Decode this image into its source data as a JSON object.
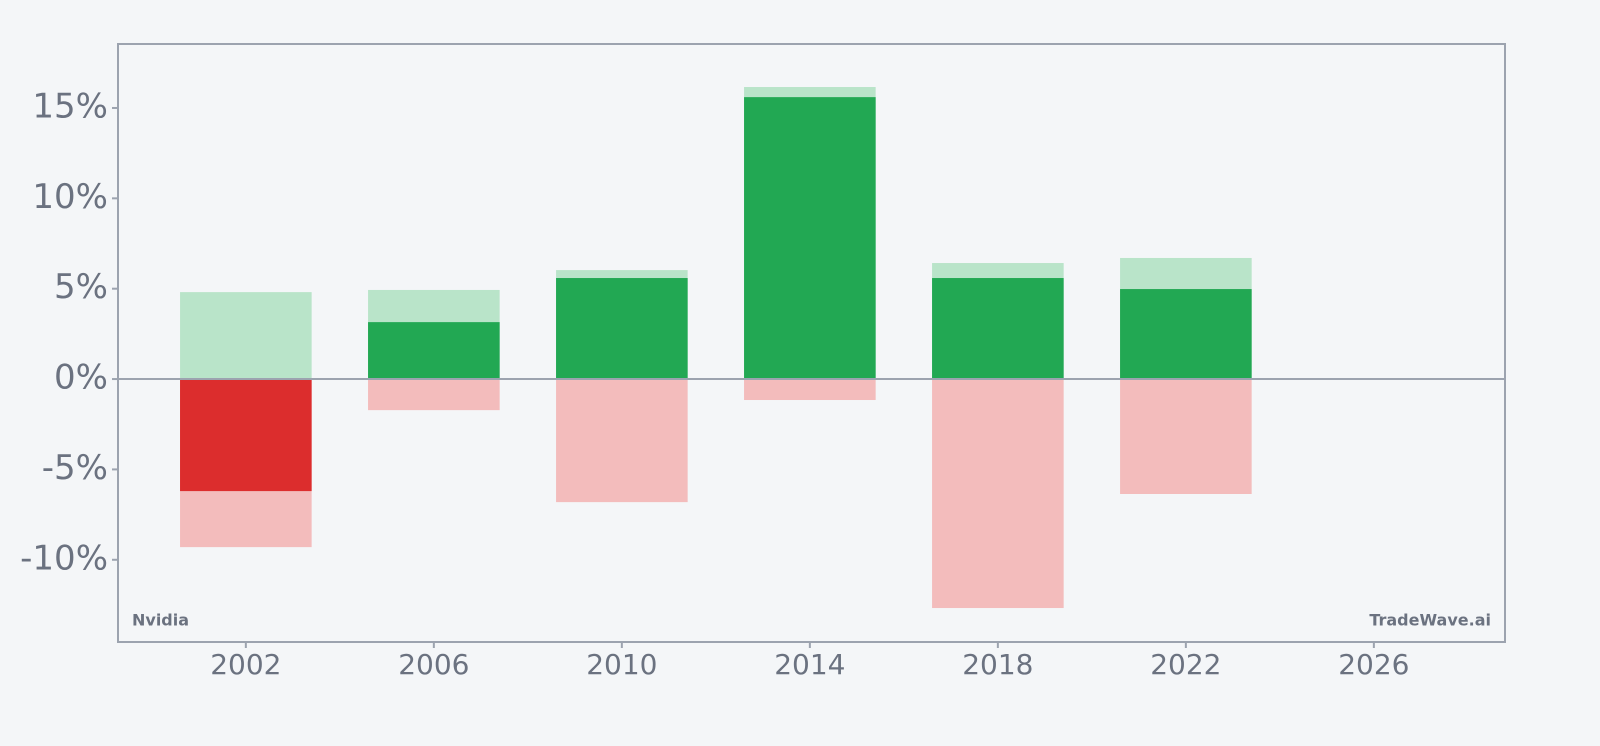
{
  "chart_data": {
    "type": "bar",
    "x": [
      2002,
      2006,
      2010,
      2014,
      2018,
      2022
    ],
    "series": [
      {
        "color": "#b9e4c9",
        "values": [
          4.81,
          4.93,
          6.03,
          16.16,
          6.42,
          6.7
        ]
      },
      {
        "color": "#f3bcbc",
        "values": [
          -9.3,
          -1.72,
          -6.81,
          -1.16,
          -12.67,
          -6.36
        ]
      },
      {
        "color": "#22a853",
        "negative_color": "#dc2d2d",
        "values": [
          -6.2,
          3.15,
          5.59,
          15.6,
          5.59,
          4.98
        ]
      }
    ],
    "xlim": [
      1999.28,
      2028.79
    ],
    "xticks": [
      2002,
      2006,
      2010,
      2014,
      2018,
      2022,
      2026
    ],
    "ylim": [
      -14.55,
      18.54
    ],
    "yticks": [
      {
        "value": -10,
        "label": "-10%"
      },
      {
        "value": -5,
        "label": "-5%"
      },
      {
        "value": 0,
        "label": "0%"
      },
      {
        "value": 5,
        "label": "5%"
      },
      {
        "value": 10,
        "label": "10%"
      },
      {
        "value": 15,
        "label": "15%"
      }
    ],
    "annotations": [
      "Nvidia",
      "TradeWave.ai"
    ]
  }
}
